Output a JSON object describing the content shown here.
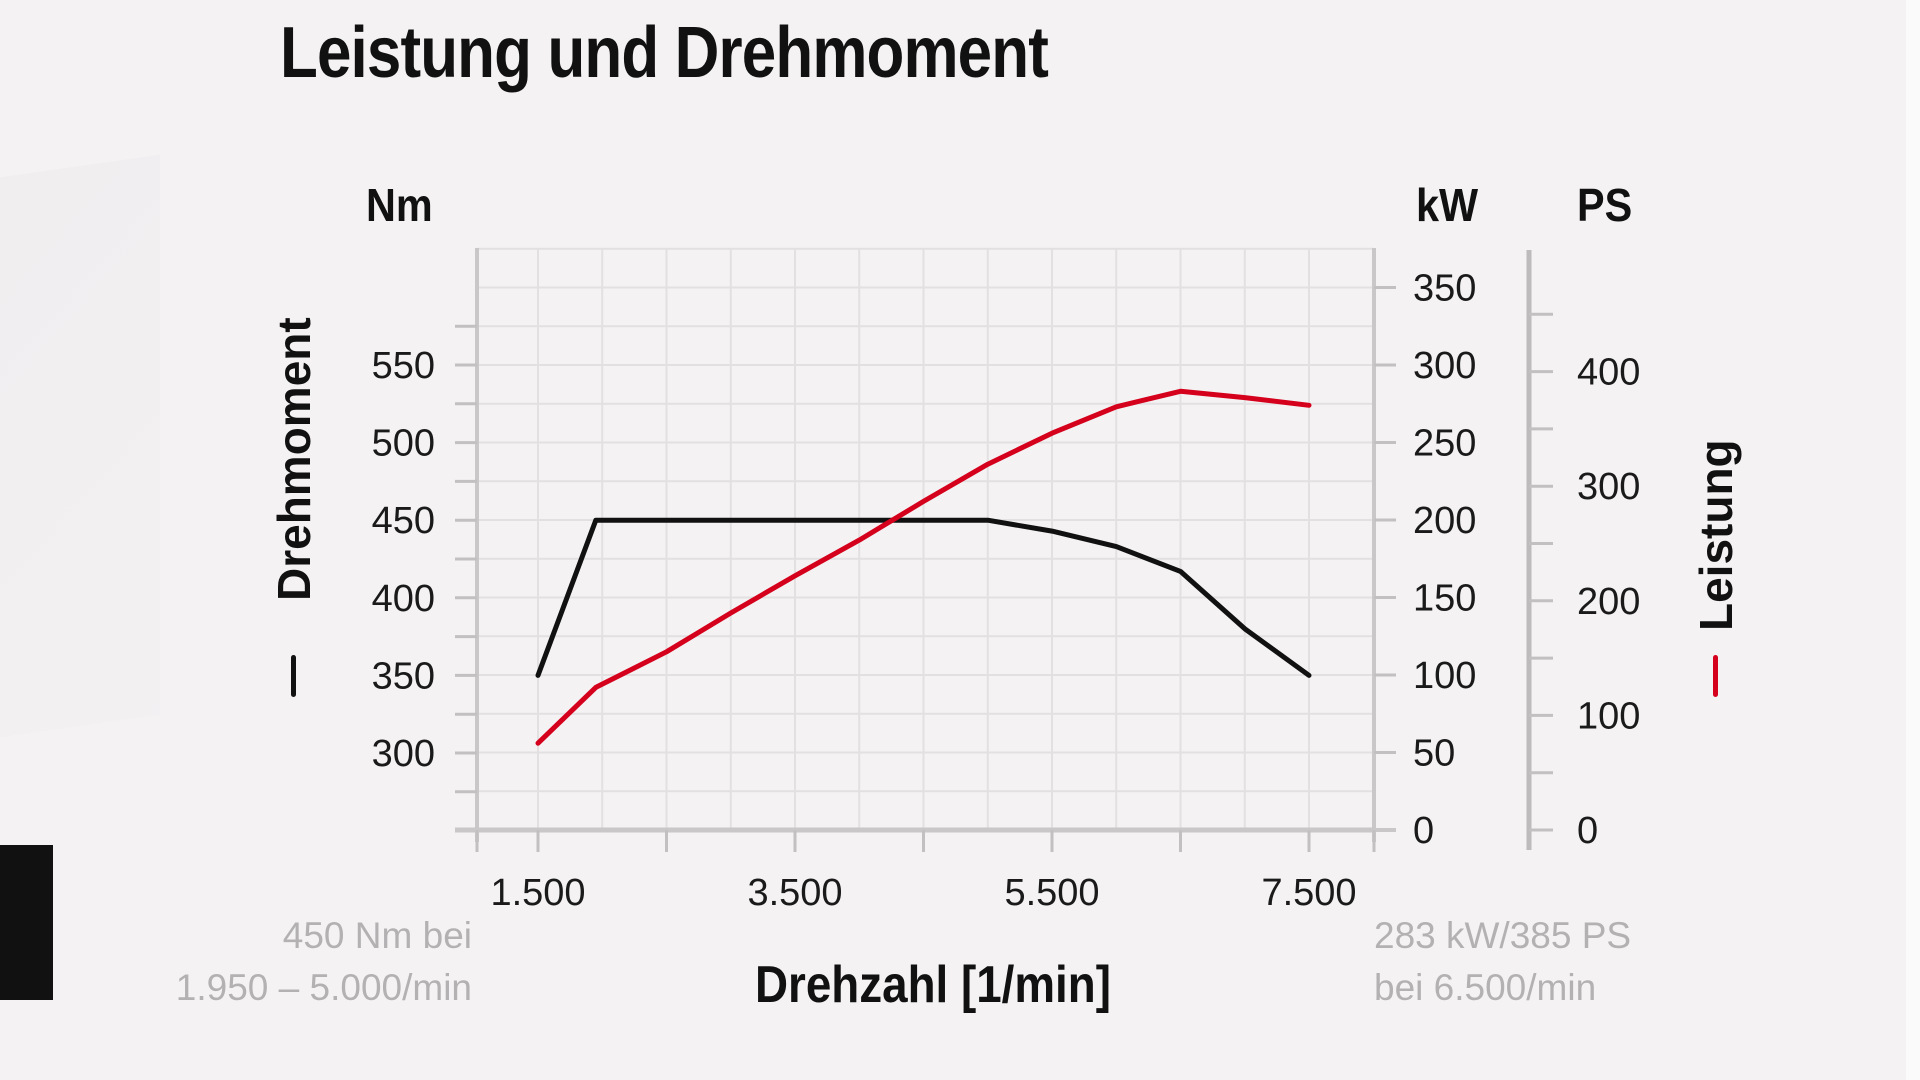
{
  "title": "Leistung und Drehmoment",
  "axes": {
    "left_unit": "Nm",
    "right_unit_kw": "kW",
    "right_unit_ps": "PS",
    "left_label": "Drehmoment",
    "right_label": "Leistung",
    "x_label": "Drehzahl [1/min]"
  },
  "annotations": {
    "torque_line1": "450 Nm bei",
    "torque_line2": "1.950 – 5.000/min",
    "power_line1": "283 kW/385 PS",
    "power_line2": "bei 6.500/min"
  },
  "colors": {
    "torque": "#111111",
    "power": "#d5001c",
    "grid": "#e2e0e1",
    "axis": "#c9c7c8",
    "annotation": "#b3b1b2"
  },
  "chart_data": {
    "type": "line",
    "title": "Leistung und Drehmoment",
    "xlabel": "Drehzahl [1/min]",
    "ylabel_left": "Drehmoment (Nm)",
    "ylabel_right": "Leistung (kW / PS)",
    "x_ticks": [
      1500,
      2500,
      3500,
      4500,
      5500,
      6500,
      7500
    ],
    "x_tick_labels": [
      "1.500",
      "",
      "3.500",
      "",
      "5.500",
      "",
      "7.500"
    ],
    "xlim": [
      1025,
      8000
    ],
    "y_left_ticks": [
      300,
      350,
      400,
      450,
      500,
      550
    ],
    "y_left_tick_labels": [
      "300",
      "350",
      "400",
      "450",
      "500",
      "550"
    ],
    "y_left_lim": [
      250,
      600
    ],
    "y_right_kw_ticks": [
      0,
      50,
      100,
      150,
      200,
      250,
      300,
      350
    ],
    "y_right_kw_tick_labels": [
      "0",
      "50",
      "100",
      "150",
      "200",
      "250",
      "300",
      "350"
    ],
    "y_right_kw_lim": [
      0,
      375
    ],
    "y_right_ps_ticks": [
      0,
      100,
      200,
      300,
      400
    ],
    "y_right_ps_tick_labels": [
      "0",
      "100",
      "200",
      "300",
      "400"
    ],
    "y_right_ps_lim": [
      0,
      500
    ],
    "grid": true,
    "series": [
      {
        "name": "Drehmoment",
        "unit": "Nm",
        "axis": "left",
        "x": [
          1500,
          1950,
          2500,
          3500,
          4500,
          5000,
          5500,
          6000,
          6500,
          7000,
          7500
        ],
        "values": [
          350,
          450,
          450,
          450,
          450,
          450,
          443,
          433,
          417,
          380,
          350
        ]
      },
      {
        "name": "Leistung",
        "unit": "kW",
        "axis": "right",
        "x": [
          1500,
          1950,
          2500,
          3000,
          3500,
          4000,
          4500,
          5000,
          5500,
          6000,
          6500,
          7000,
          7500
        ],
        "values": [
          56,
          92,
          115,
          140,
          164,
          187,
          212,
          236,
          256,
          273,
          283,
          279,
          274
        ]
      }
    ]
  }
}
